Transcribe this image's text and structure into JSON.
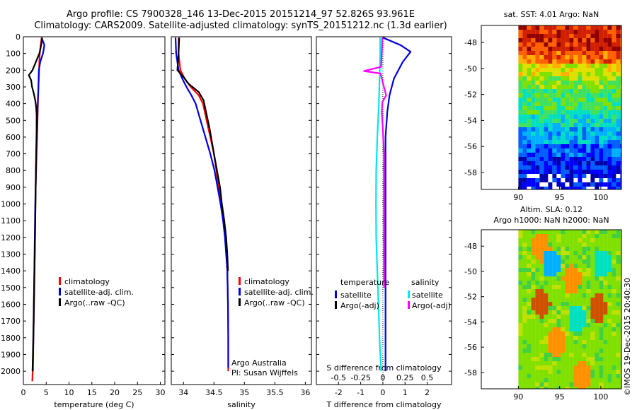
{
  "title": {
    "line1": "Argo profile: CS 7900328_146 13-Dec-2015 20151214_97 52.826S 93.961E",
    "line2": "Climatology: CARS2009. Satellite-adjusted climatology: synTS_20151212.nc (1.3d earlier)"
  },
  "timestamp": "©IMOS 19-Dec-2015 20:40:30",
  "colors": {
    "climatology": "#ff0000",
    "satellite": "#0000dd",
    "argo": "#000000",
    "salinity_sat": "#00e8e8",
    "salinity_argo": "#ff00ff"
  },
  "depth_axis": {
    "ticks": [
      0,
      100,
      200,
      300,
      400,
      500,
      600,
      700,
      800,
      900,
      1000,
      1100,
      1200,
      1300,
      1400,
      1500,
      1600,
      1700,
      1800,
      1900,
      2000
    ],
    "ylim": [
      0,
      2080
    ],
    "inverted": true
  },
  "chart_data": [
    {
      "id": "temperature",
      "type": "line",
      "xlabel": "temperature (deg C)",
      "xlim": [
        0,
        31
      ],
      "xticks": [
        0,
        5,
        10,
        15,
        20,
        25,
        30
      ],
      "xtick_labels": [
        "0",
        "5",
        "10",
        "15",
        "20",
        "25",
        "30"
      ],
      "legend": {
        "entries": [
          "climatology",
          "satellite-adj. clim.",
          "Argo(..raw -QC)"
        ]
      },
      "series": [
        {
          "name": "climatology",
          "color": "#ff0000",
          "points": [
            [
              4.0,
              5
            ],
            [
              3.8,
              50
            ],
            [
              3.6,
              100
            ],
            [
              3.5,
              150
            ],
            [
              3.45,
              200
            ],
            [
              3.3,
              300
            ],
            [
              3.2,
              400
            ],
            [
              3.1,
              500
            ],
            [
              3.0,
              600
            ],
            [
              2.9,
              700
            ],
            [
              2.8,
              800
            ],
            [
              2.7,
              900
            ],
            [
              2.65,
              1000
            ],
            [
              2.55,
              1200
            ],
            [
              2.45,
              1400
            ],
            [
              2.35,
              1600
            ],
            [
              2.2,
              1800
            ],
            [
              2.05,
              2000
            ],
            [
              1.95,
              2060
            ]
          ]
        },
        {
          "name": "satellite-adj. clim.",
          "color": "#0000dd",
          "points": [
            [
              4.0,
              5
            ],
            [
              4.6,
              50
            ],
            [
              4.3,
              100
            ],
            [
              3.7,
              150
            ],
            [
              3.4,
              200
            ],
            [
              3.3,
              300
            ],
            [
              3.15,
              400
            ],
            [
              3.05,
              500
            ],
            [
              2.95,
              600
            ],
            [
              2.85,
              700
            ],
            [
              2.75,
              800
            ],
            [
              2.7,
              900
            ],
            [
              2.6,
              1000
            ],
            [
              2.5,
              1200
            ],
            [
              2.4,
              1400
            ],
            [
              2.3,
              1600
            ],
            [
              2.2,
              1800
            ],
            [
              2.1,
              2000
            ]
          ]
        },
        {
          "name": "Argo(..raw -QC)",
          "color": "#000000",
          "points": [
            [
              4.1,
              5
            ],
            [
              3.9,
              50
            ],
            [
              3.5,
              100
            ],
            [
              2.6,
              160
            ],
            [
              2.0,
              200
            ],
            [
              1.2,
              230
            ],
            [
              1.7,
              260
            ],
            [
              1.9,
              300
            ],
            [
              2.3,
              340
            ],
            [
              2.6,
              380
            ],
            [
              2.8,
              420
            ],
            [
              2.9,
              470
            ],
            [
              2.9,
              550
            ],
            [
              2.8,
              700
            ],
            [
              2.7,
              900
            ],
            [
              2.6,
              1100
            ],
            [
              2.5,
              1300
            ],
            [
              2.35,
              1500
            ],
            [
              2.25,
              1700
            ],
            [
              2.1,
              1900
            ],
            [
              2.0,
              2000
            ]
          ]
        }
      ]
    },
    {
      "id": "salinity",
      "type": "line",
      "xlabel": "salinity",
      "xlim": [
        33.8,
        36.1
      ],
      "xticks": [
        34,
        34.5,
        35,
        35.5,
        36
      ],
      "xtick_labels": [
        "34",
        "34.5",
        "35",
        "35.5",
        "36"
      ],
      "legend": {
        "entries": [
          "climatology",
          "satellite-adj. clim.",
          "Argo(..raw -QC)"
        ]
      },
      "annotation": [
        "Argo Australia",
        "PI: Susan Wijffels"
      ],
      "series": [
        {
          "name": "climatology",
          "color": "#ff0000",
          "points": [
            [
              33.92,
              5
            ],
            [
              33.92,
              100
            ],
            [
              33.95,
              200
            ],
            [
              34.02,
              250
            ],
            [
              34.12,
              300
            ],
            [
              34.25,
              350
            ],
            [
              34.32,
              400
            ],
            [
              34.38,
              500
            ],
            [
              34.44,
              600
            ],
            [
              34.5,
              700
            ],
            [
              34.54,
              800
            ],
            [
              34.58,
              900
            ],
            [
              34.62,
              1000
            ],
            [
              34.66,
              1100
            ],
            [
              34.69,
              1200
            ],
            [
              34.71,
              1300
            ],
            [
              34.72,
              1400
            ],
            [
              34.73,
              1600
            ],
            [
              34.735,
              1800
            ],
            [
              34.735,
              2000
            ]
          ]
        },
        {
          "name": "satellite-adj. clim.",
          "color": "#0000dd",
          "points": [
            [
              33.87,
              5
            ],
            [
              33.88,
              100
            ],
            [
              33.92,
              200
            ],
            [
              33.98,
              250
            ],
            [
              34.05,
              300
            ],
            [
              34.13,
              350
            ],
            [
              34.2,
              400
            ],
            [
              34.28,
              500
            ],
            [
              34.36,
              600
            ],
            [
              34.44,
              700
            ],
            [
              34.51,
              800
            ],
            [
              34.56,
              900
            ],
            [
              34.61,
              1000
            ],
            [
              34.65,
              1100
            ],
            [
              34.68,
              1200
            ],
            [
              34.7,
              1300
            ],
            [
              34.72,
              1400
            ],
            [
              34.73,
              1600
            ],
            [
              34.735,
              1800
            ],
            [
              34.735,
              1980
            ]
          ]
        },
        {
          "name": "Argo(..raw -QC)",
          "color": "#000000",
          "points": [
            [
              33.93,
              5
            ],
            [
              33.92,
              100
            ],
            [
              33.9,
              200
            ],
            [
              34.0,
              240
            ],
            [
              34.08,
              280
            ],
            [
              34.25,
              330
            ],
            [
              34.33,
              380
            ],
            [
              34.37,
              450
            ],
            [
              34.43,
              550
            ],
            [
              34.5,
              700
            ],
            [
              34.55,
              800
            ],
            [
              34.6,
              900
            ],
            [
              34.63,
              1000
            ],
            [
              34.67,
              1100
            ],
            [
              34.7,
              1200
            ],
            [
              34.72,
              1300
            ],
            [
              34.73,
              1400
            ]
          ]
        }
      ]
    },
    {
      "id": "difference",
      "type": "line",
      "xlabel": "T difference from climatology",
      "xlabel2": "S difference from climatology",
      "xlim": [
        -3.0,
        3.1
      ],
      "xticks": [
        -2,
        -1,
        0,
        1,
        2
      ],
      "xtick_labels": [
        "-2",
        "-1",
        "0",
        "1",
        "2"
      ],
      "sticks": [
        -0.5,
        -0.25,
        0,
        0.25,
        0.5
      ],
      "stick_labels": [
        "-0.5",
        "-0.25",
        "0",
        "0.25",
        "0.5"
      ],
      "legend": {
        "temperature_header": "temperature",
        "salinity_header": "salinity",
        "entries": [
          "satellite",
          "Argo(-adj)"
        ]
      },
      "series": [
        {
          "name": "temperature satellite",
          "color": "#0000dd",
          "points": [
            [
              0.0,
              5
            ],
            [
              0.8,
              50
            ],
            [
              1.25,
              90
            ],
            [
              0.9,
              150
            ],
            [
              0.5,
              250
            ],
            [
              0.3,
              350
            ],
            [
              0.2,
              450
            ],
            [
              0.12,
              600
            ],
            [
              0.12,
              800
            ],
            [
              0.12,
              1000
            ],
            [
              0.12,
              1200
            ],
            [
              0.12,
              1400
            ],
            [
              0.12,
              1600
            ],
            [
              0.12,
              1800
            ],
            [
              0.12,
              2000
            ]
          ]
        },
        {
          "name": "temperature Argo(-adj)",
          "color": "#000000",
          "points": []
        },
        {
          "name": "salinity satellite",
          "color": "#00e8e8",
          "points": [
            [
              -0.12,
              5
            ],
            [
              -0.12,
              100
            ],
            [
              -0.14,
              200
            ],
            [
              -0.18,
              400
            ],
            [
              -0.25,
              600
            ],
            [
              -0.3,
              800
            ],
            [
              -0.31,
              1000
            ],
            [
              -0.3,
              1200
            ],
            [
              -0.25,
              1400
            ],
            [
              -0.2,
              1600
            ],
            [
              -0.15,
              1800
            ],
            [
              -0.08,
              2000
            ]
          ]
        },
        {
          "name": "salinity Argo(-adj)",
          "color": "#ff00ff",
          "points": [
            [
              -0.02,
              5
            ],
            [
              -0.05,
              100
            ],
            [
              -0.08,
              180
            ],
            [
              -0.85,
              205
            ],
            [
              -0.1,
              220
            ],
            [
              -0.05,
              250
            ],
            [
              0.05,
              300
            ],
            [
              0.15,
              350
            ],
            [
              -0.02,
              390
            ],
            [
              -0.05,
              450
            ],
            [
              0.0,
              550
            ],
            [
              0.05,
              700
            ],
            [
              0.05,
              900
            ],
            [
              0.05,
              1100
            ],
            [
              0.05,
              1300
            ],
            [
              0.06,
              1500
            ]
          ]
        }
      ]
    }
  ],
  "maps": [
    {
      "id": "sst-map",
      "title": "sat. SST: 4.01  Argo: NaN",
      "xticks": [
        90,
        95,
        100
      ],
      "yticks": [
        -48,
        -50,
        -52,
        -54,
        -56,
        -58
      ],
      "xlim": [
        85.5,
        102.5
      ],
      "ylim": [
        -59.3,
        -46.7
      ],
      "data_west_lon": 90,
      "palette": [
        "#0000a8",
        "#0000ff",
        "#0060ff",
        "#00b0ff",
        "#00e0c0",
        "#40e060",
        "#80e000",
        "#e0e000",
        "#ffb000",
        "#ff6000",
        "#d02000",
        "#900000"
      ],
      "values_by_lat": [
        {
          "lat": -47,
          "level": 10
        },
        {
          "lat": -48,
          "level": 10
        },
        {
          "lat": -49,
          "level": 9
        },
        {
          "lat": -50,
          "level": 7
        },
        {
          "lat": -51,
          "level": 6
        },
        {
          "lat": -52,
          "level": 5
        },
        {
          "lat": -53,
          "level": 5
        },
        {
          "lat": -54,
          "level": 4
        },
        {
          "lat": -55,
          "level": 3
        },
        {
          "lat": -56,
          "level": 2
        },
        {
          "lat": -57,
          "level": 1
        },
        {
          "lat": -58,
          "level": 1
        }
      ]
    },
    {
      "id": "sla-map",
      "title_line1": "Altim. SLA: 0.12",
      "title_line2": "Argo h1000: NaN  h2000: NaN",
      "xticks": [
        90,
        95,
        100
      ],
      "yticks": [
        -48,
        -50,
        -52,
        -54,
        -56,
        -58
      ],
      "xlim": [
        85.5,
        102.5
      ],
      "ylim": [
        -59.3,
        -46.7
      ],
      "data_west_lon": 90,
      "palette": [
        "#00b0ff",
        "#00e0c0",
        "#40d040",
        "#80e000",
        "#c0e000",
        "#ffd000",
        "#ff9000",
        "#d05000"
      ],
      "base_level": 3
    }
  ]
}
